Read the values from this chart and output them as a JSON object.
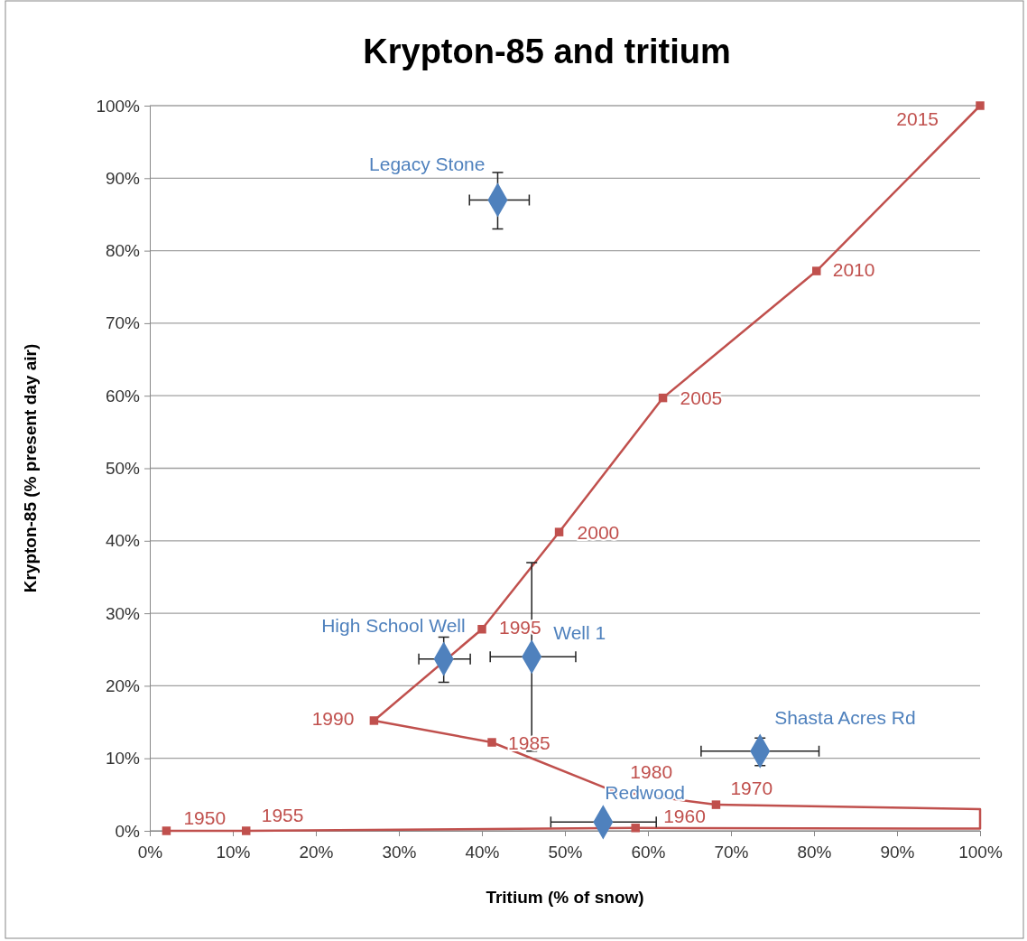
{
  "chart_data": {
    "type": "line",
    "title": "Krypton-85 and tritium",
    "xlabel": "Tritium (% of snow)",
    "ylabel": "Krypton-85 (% present day air)",
    "xlim": [
      0,
      100
    ],
    "ylim": [
      0,
      100
    ],
    "xticks": [
      {
        "value": 0,
        "label": "0%"
      },
      {
        "value": 10,
        "label": "10%"
      },
      {
        "value": 20,
        "label": "20%"
      },
      {
        "value": 30,
        "label": "30%"
      },
      {
        "value": 40,
        "label": "40%"
      },
      {
        "value": 50,
        "label": "50%"
      },
      {
        "value": 60,
        "label": "60%"
      },
      {
        "value": 70,
        "label": "70%"
      },
      {
        "value": 80,
        "label": "80%"
      },
      {
        "value": 90,
        "label": "90%"
      },
      {
        "value": 100,
        "label": "100%"
      }
    ],
    "yticks": [
      {
        "value": 0,
        "label": "0%"
      },
      {
        "value": 10,
        "label": "10%"
      },
      {
        "value": 20,
        "label": "20%"
      },
      {
        "value": 30,
        "label": "30%"
      },
      {
        "value": 40,
        "label": "40%"
      },
      {
        "value": 50,
        "label": "50%"
      },
      {
        "value": 60,
        "label": "60%"
      },
      {
        "value": 70,
        "label": "70%"
      },
      {
        "value": 80,
        "label": "80%"
      },
      {
        "value": 90,
        "label": "90%"
      },
      {
        "value": 100,
        "label": "100%"
      }
    ],
    "grid": "y",
    "series": [
      {
        "color": "#c0504d",
        "marker": "square",
        "x": [
          2,
          11.6,
          58.5
        ],
        "values": [
          0,
          0,
          0.4
        ]
      },
      {
        "color": "#c0504d",
        "marker": "square",
        "x": [
          68.2,
          55.8,
          41.2,
          27,
          40,
          49.3,
          61.8,
          80.3,
          100
        ],
        "values": [
          3.6,
          5.5,
          12.2,
          15.2,
          27.8,
          41.2,
          59.7,
          77.2,
          100
        ]
      },
      {
        "color": "#c0504d",
        "marker": "none",
        "x": [
          58.5,
          100,
          100,
          68.2
        ],
        "values": [
          0.4,
          0.3,
          3.0,
          3.6
        ]
      },
      {
        "type": "scatter",
        "color": "#4f81bd",
        "marker": "diamond",
        "x": [
          41.9,
          35.4,
          46,
          73.5,
          54.6
        ],
        "values": [
          87,
          23.7,
          24,
          11,
          1.2
        ],
        "errors": [
          [
            83,
            90.8
          ],
          [
            20.5,
            26.7
          ],
          [
            11,
            37
          ],
          [
            9,
            12.8
          ],
          null
        ],
        "xerrors": [
          [
            38.5,
            45.7
          ],
          [
            32.4,
            38.6
          ],
          [
            41,
            51.3
          ],
          [
            66.4,
            80.6
          ],
          [
            48.3,
            61
          ]
        ]
      }
    ],
    "annotations": [
      {
        "text": "1950",
        "x": 2,
        "y": 0
      },
      {
        "text": "1955",
        "x": 11.6,
        "y": 0
      },
      {
        "text": "1960",
        "x": 58.5,
        "y": 0.4
      },
      {
        "text": "1970",
        "x": 68.2,
        "y": 3.6
      },
      {
        "text": "1980",
        "x": 55.8,
        "y": 5.5
      },
      {
        "text": "1985",
        "x": 41.2,
        "y": 12.2
      },
      {
        "text": "1990",
        "x": 27,
        "y": 15.2
      },
      {
        "text": "1995",
        "x": 40,
        "y": 27.8
      },
      {
        "text": "2000",
        "x": 49.3,
        "y": 41.2
      },
      {
        "text": "2005",
        "x": 61.8,
        "y": 59.7
      },
      {
        "text": "2010",
        "x": 80.3,
        "y": 77.2
      },
      {
        "text": "2015",
        "x": 100,
        "y": 100
      },
      {
        "text": "Legacy Stone",
        "x": 41.9,
        "y": 87
      },
      {
        "text": "High School Well",
        "x": 35.4,
        "y": 23.7
      },
      {
        "text": "Well 1",
        "x": 46,
        "y": 24
      },
      {
        "text": "Shasta Acres Rd",
        "x": 73.5,
        "y": 11
      },
      {
        "text": "Redwood",
        "x": 54.6,
        "y": 1.2
      }
    ]
  }
}
